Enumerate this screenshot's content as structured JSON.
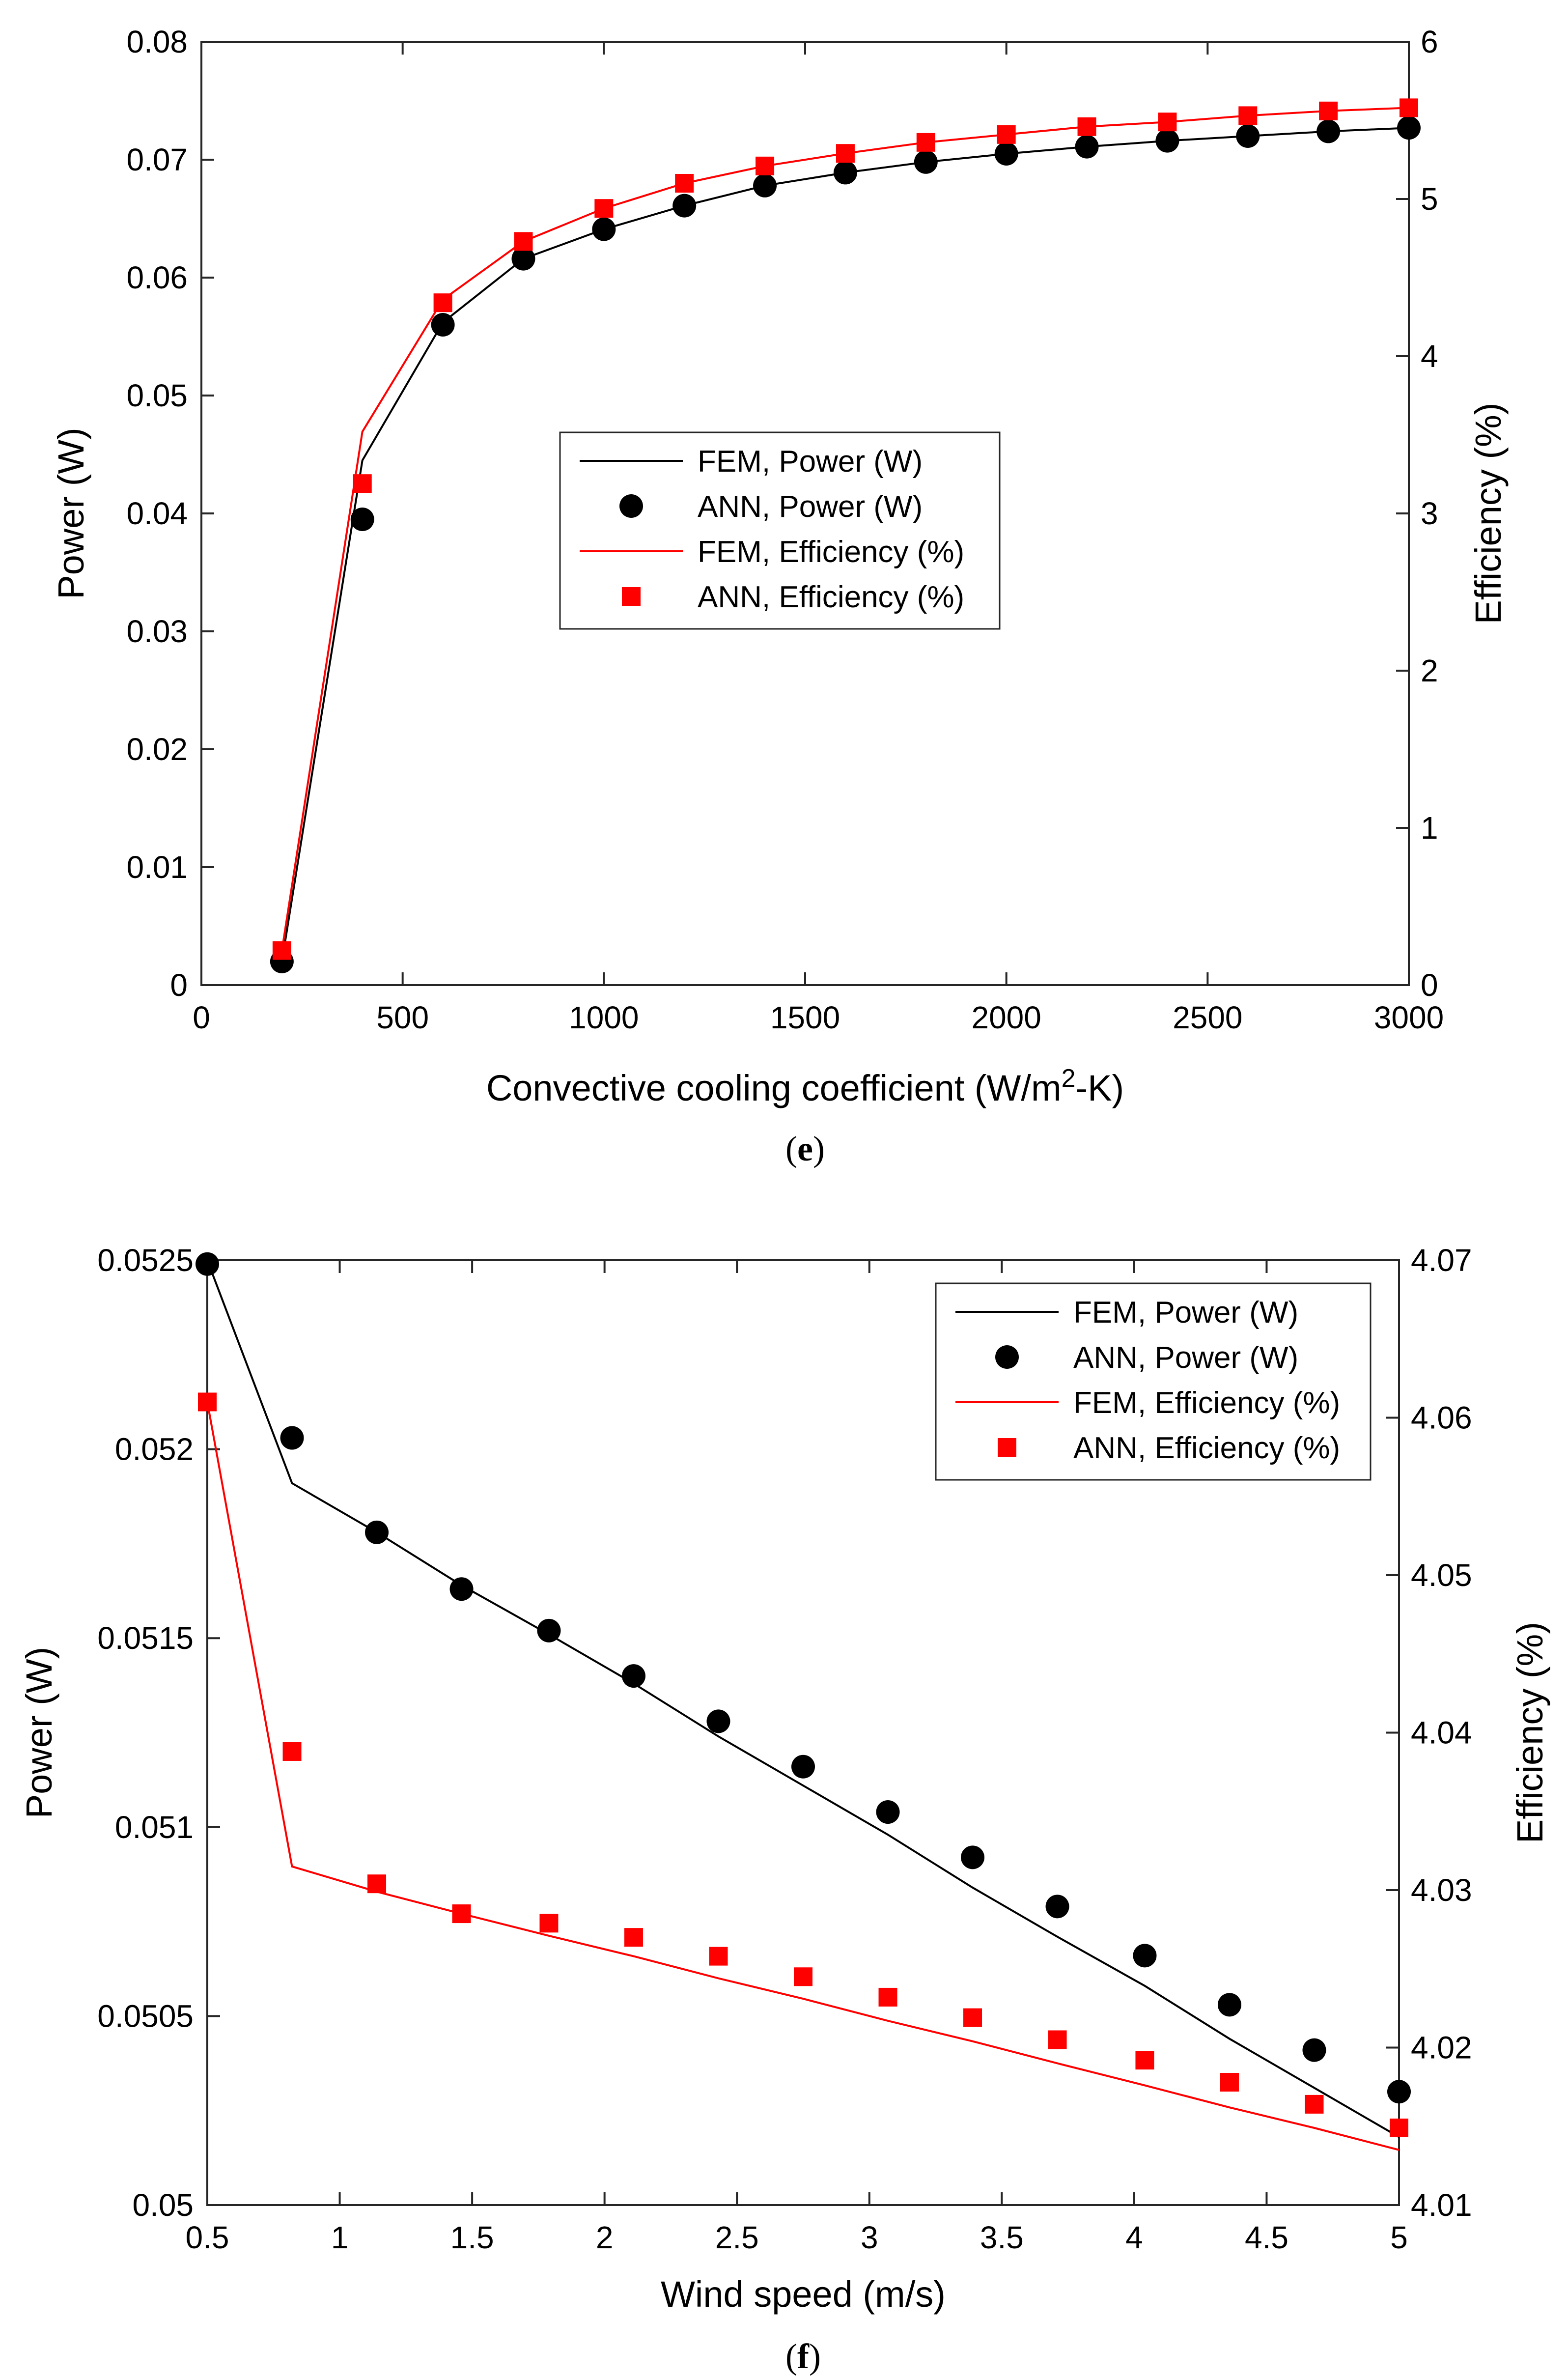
{
  "chart_data": [
    {
      "type": "line",
      "caption": "e",
      "xlabel": "Convective cooling coefficient (W/m2-K)",
      "xlabel_main": "Convective cooling coefficient (W/m",
      "xlabel_sup": "2",
      "xlabel_end": "-K)",
      "ylabel_left": "Power (W)",
      "ylabel_right": "Efficiency (%)",
      "xlim": [
        0,
        3000
      ],
      "ylim_left": [
        0,
        0.08
      ],
      "ylim_right": [
        0,
        6
      ],
      "xticks": [
        "0",
        "500",
        "1000",
        "1500",
        "2000",
        "2500",
        "3000"
      ],
      "yticks_left": [
        "0",
        "0.01",
        "0.02",
        "0.03",
        "0.04",
        "0.05",
        "0.06",
        "0.07",
        "0.08"
      ],
      "yticks_right": [
        "0",
        "1",
        "2",
        "3",
        "4",
        "5",
        "6"
      ],
      "legend_position": "center",
      "x": [
        200,
        400,
        600,
        800,
        1000,
        1200,
        1400,
        1600,
        1800,
        2000,
        2200,
        2400,
        2600,
        2800,
        3000
      ],
      "series": [
        {
          "name": "FEM, Power (W)",
          "axis": "left",
          "style": "line",
          "color": "#000000",
          "values": [
            0.002,
            0.0445,
            0.0562,
            0.0616,
            0.0641,
            0.0661,
            0.0678,
            0.0689,
            0.0698,
            0.0705,
            0.0711,
            0.0716,
            0.072,
            0.0724,
            0.0727
          ]
        },
        {
          "name": "ANN, Power (W)",
          "axis": "left",
          "style": "circle",
          "color": "#000000",
          "values": [
            0.002,
            0.0395,
            0.056,
            0.0616,
            0.0641,
            0.0661,
            0.0678,
            0.0689,
            0.0698,
            0.0705,
            0.0711,
            0.0716,
            0.072,
            0.0724,
            0.0727
          ]
        },
        {
          "name": "FEM, Efficiency (%)",
          "axis": "right",
          "style": "line",
          "color": "#ff0000",
          "values": [
            0.22,
            3.52,
            4.36,
            4.73,
            4.94,
            5.1,
            5.21,
            5.29,
            5.36,
            5.41,
            5.46,
            5.49,
            5.53,
            5.56,
            5.58
          ]
        },
        {
          "name": "ANN, Efficiency (%)",
          "axis": "right",
          "style": "square",
          "color": "#ff0000",
          "values": [
            0.22,
            3.19,
            4.34,
            4.73,
            4.94,
            5.1,
            5.21,
            5.29,
            5.36,
            5.41,
            5.46,
            5.49,
            5.53,
            5.56,
            5.58
          ]
        }
      ]
    },
    {
      "type": "line",
      "caption": "f",
      "xlabel": "Wind speed (m/s)",
      "ylabel_left": "Power (W)",
      "ylabel_right": "Efficiency (%)",
      "xlim": [
        0.5,
        5
      ],
      "ylim_left": [
        0.05,
        0.0525
      ],
      "ylim_right": [
        4.01,
        4.07
      ],
      "xticks": [
        "0.5",
        "1",
        "1.5",
        "2",
        "2.5",
        "3",
        "3.5",
        "4",
        "4.5",
        "5"
      ],
      "yticks_left": [
        "0.05",
        "0.0505",
        "0.051",
        "0.0515",
        "0.052",
        "0.0525"
      ],
      "yticks_right": [
        "4.01",
        "4.02",
        "4.03",
        "4.04",
        "4.05",
        "4.06",
        "4.07"
      ],
      "legend_position": "top-right",
      "x": [
        0.5,
        0.82,
        1.14,
        1.46,
        1.79,
        2.11,
        2.43,
        2.75,
        3.07,
        3.39,
        3.71,
        4.04,
        4.36,
        4.68,
        5.0
      ],
      "series": [
        {
          "name": "FEM, Power (W)",
          "axis": "left",
          "style": "line",
          "color": "#000000",
          "values": [
            0.0525,
            0.05191,
            0.05178,
            0.05164,
            0.05151,
            0.05138,
            0.05124,
            0.05111,
            0.05098,
            0.05084,
            0.05071,
            0.05058,
            0.05044,
            0.05031,
            0.05018
          ]
        },
        {
          "name": "ANN, Power (W)",
          "axis": "left",
          "style": "circle",
          "color": "#000000",
          "values": [
            0.05249,
            0.05203,
            0.05178,
            0.05163,
            0.05152,
            0.0514,
            0.05128,
            0.05116,
            0.05104,
            0.05092,
            0.05079,
            0.05066,
            0.05053,
            0.05041,
            0.0503
          ]
        },
        {
          "name": "FEM, Efficiency (%)",
          "axis": "right",
          "style": "line",
          "color": "#ff0000",
          "values": [
            4.061,
            4.0315,
            4.0299,
            4.0285,
            4.0271,
            4.0258,
            4.0244,
            4.0231,
            4.0217,
            4.0204,
            4.019,
            4.0176,
            4.0162,
            4.0149,
            4.0135
          ]
        },
        {
          "name": "ANN, Efficiency (%)",
          "axis": "right",
          "style": "square",
          "color": "#ff0000",
          "values": [
            4.061,
            4.0388,
            4.0304,
            4.0285,
            4.0279,
            4.027,
            4.0258,
            4.0245,
            4.0232,
            4.0219,
            4.0205,
            4.0192,
            4.0178,
            4.0164,
            4.0149
          ]
        }
      ]
    }
  ]
}
